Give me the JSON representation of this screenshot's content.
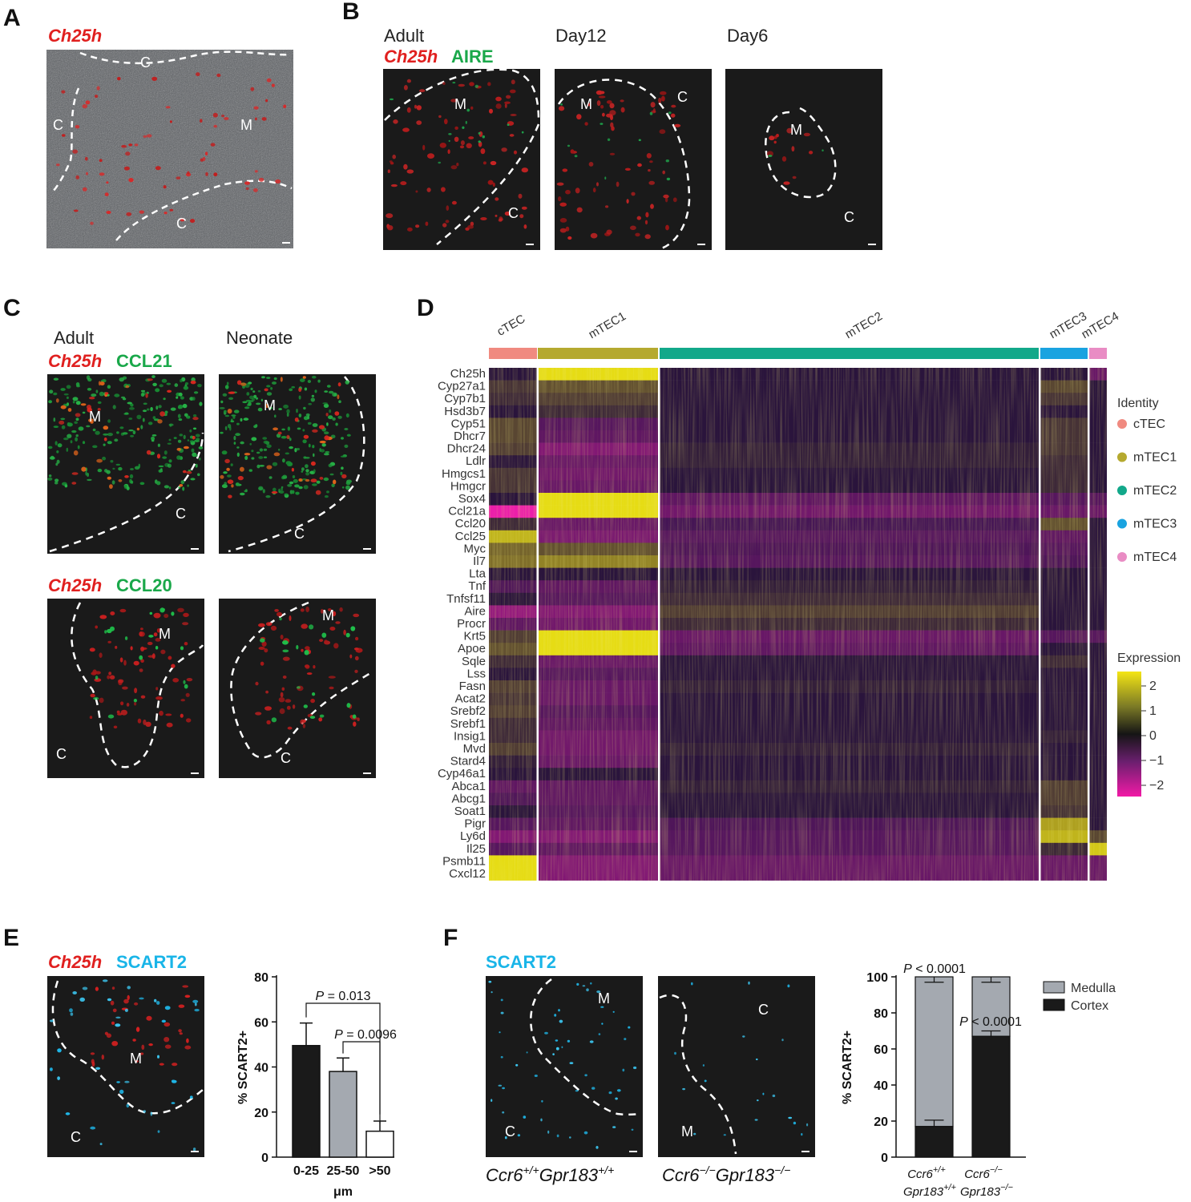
{
  "panels": {
    "A": {
      "label": "A",
      "title": "Ch25h",
      "regions": [
        "C",
        "M",
        "C",
        "C"
      ]
    },
    "B": {
      "label": "B",
      "headers": [
        "Adult",
        "Day12",
        "Day6"
      ],
      "stain_red": "Ch25h",
      "stain_green": "AIRE",
      "regions": [
        "M",
        "C",
        "M",
        "C",
        "M",
        "C"
      ]
    },
    "C": {
      "label": "C",
      "headers": [
        "Adult",
        "Neonate"
      ],
      "row1_red": "Ch25h",
      "row1_green": "CCL21",
      "row2_red": "Ch25h",
      "row2_green": "CCL20",
      "regions": [
        "M",
        "C",
        "M",
        "C",
        "M",
        "C",
        "M",
        "C"
      ]
    },
    "D": {
      "label": "D",
      "clusters": [
        {
          "name": "cTEC",
          "color": "#f08a80"
        },
        {
          "name": "mTEC1",
          "color": "#b5a92f"
        },
        {
          "name": "mTEC2",
          "color": "#12a88a"
        },
        {
          "name": "mTEC3",
          "color": "#1aa3e0"
        },
        {
          "name": "mTEC4",
          "color": "#e98cc4"
        }
      ],
      "genes": [
        "Ch25h",
        "Cyp27a1",
        "Cyp7b1",
        "Hsd3b7",
        "Cyp51",
        "Dhcr7",
        "Dhcr24",
        "Ldlr",
        "Hmgcs1",
        "Hmgcr",
        "Sox4",
        "Ccl21a",
        "Ccl20",
        "Ccl25",
        "Myc",
        "Il7",
        "Lta",
        "Tnf",
        "Tnfsf11",
        "Aire",
        "Procr",
        "Krt5",
        "Apoe",
        "Sqle",
        "Lss",
        "Fasn",
        "Acat2",
        "Srebf2",
        "Srebf1",
        "Insig1",
        "Mvd",
        "Stard4",
        "Cyp46a1",
        "Abca1",
        "Abcg1",
        "Soat1",
        "Pigr",
        "Ly6d",
        "Il25",
        "Psmb11",
        "Cxcl12"
      ],
      "legend_identity_title": "Identity",
      "legend_expression_title": "Expression",
      "expression_ticks": [
        "2",
        "1",
        "0",
        "−1",
        "−2"
      ]
    },
    "E": {
      "label": "E",
      "stain_red": "Ch25h",
      "stain_cyan": "SCART2",
      "regions": [
        "M",
        "C"
      ]
    },
    "F": {
      "label": "F",
      "stain_cyan": "SCART2",
      "regions": [
        "M",
        "C",
        "C",
        "M"
      ],
      "genotype1": "Ccr6+/+Gpr183+/+",
      "genotype2": "Ccr6−/−Gpr183−/−"
    }
  },
  "chart_data": [
    {
      "type": "bar",
      "panel": "E",
      "categories": [
        "0-25",
        "25-50",
        ">50"
      ],
      "values": [
        49.5,
        38,
        11.5
      ],
      "errors": [
        10,
        6,
        4.5
      ],
      "colors": [
        "#1a1a1a",
        "#a4a9b0",
        "#ffffff"
      ],
      "ylabel": "% SCART2+",
      "xlabel": "μm",
      "ylim": [
        0,
        80
      ],
      "yticks": [
        "0",
        "20",
        "40",
        "60",
        "80"
      ],
      "annotations": [
        "P = 0.013",
        "P = 0.0096"
      ]
    },
    {
      "type": "bar",
      "panel": "F",
      "stacked": true,
      "categories": [
        "Ccr6+/+ Gpr183+/+",
        "Ccr6−/− Gpr183−/−"
      ],
      "series": [
        {
          "name": "Cortex",
          "values": [
            17,
            67
          ],
          "errors": [
            3.5,
            3
          ],
          "color": "#1a1a1a"
        },
        {
          "name": "Medulla",
          "values": [
            83,
            33
          ],
          "errors": [
            3,
            3
          ],
          "color": "#a4a9b0"
        }
      ],
      "ylabel": "% SCART2+",
      "ylim": [
        0,
        100
      ],
      "yticks": [
        "0",
        "20",
        "40",
        "60",
        "80",
        "100"
      ],
      "annotations": [
        "P < 0.0001",
        "P < 0.0001"
      ]
    }
  ]
}
